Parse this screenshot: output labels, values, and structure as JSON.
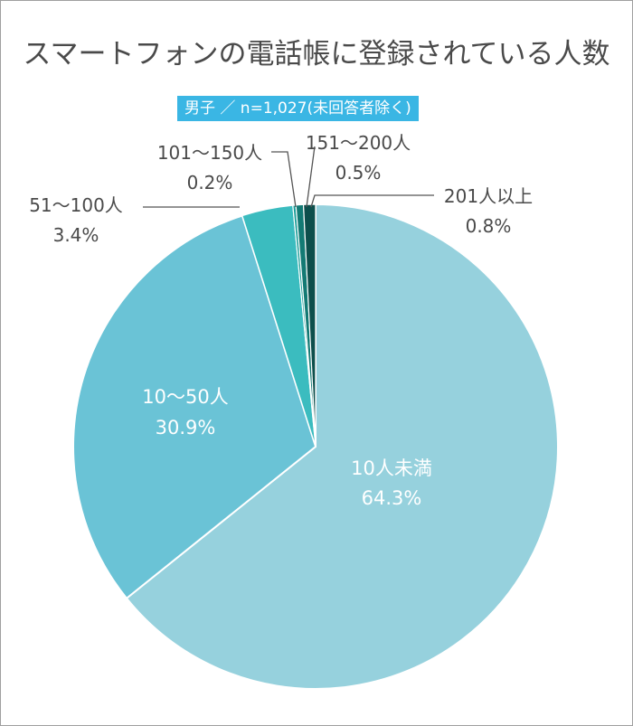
{
  "chart_data": {
    "type": "pie",
    "title": "スマートフォンの電話帳に登録されている人数",
    "subtitle": "男子 ／ n=1,027(未回答者除く)",
    "slices": [
      {
        "label": "10人未満",
        "value": 64.3,
        "value_label": "64.3%",
        "color": "#96d1dd"
      },
      {
        "label": "10〜50人",
        "value": 30.9,
        "value_label": "30.9%",
        "color": "#6ac3d6"
      },
      {
        "label": "51〜100人",
        "value": 3.4,
        "value_label": "3.4%",
        "color": "#3bbcbf"
      },
      {
        "label": "101〜150人",
        "value": 0.2,
        "value_label": "0.2%",
        "color": "#1f9e9a"
      },
      {
        "label": "151〜200人",
        "value": 0.5,
        "value_label": "0.5%",
        "color": "#137a74"
      },
      {
        "label": "201人以上",
        "value": 0.8,
        "value_label": "0.8%",
        "color": "#0d4f4c"
      }
    ]
  }
}
